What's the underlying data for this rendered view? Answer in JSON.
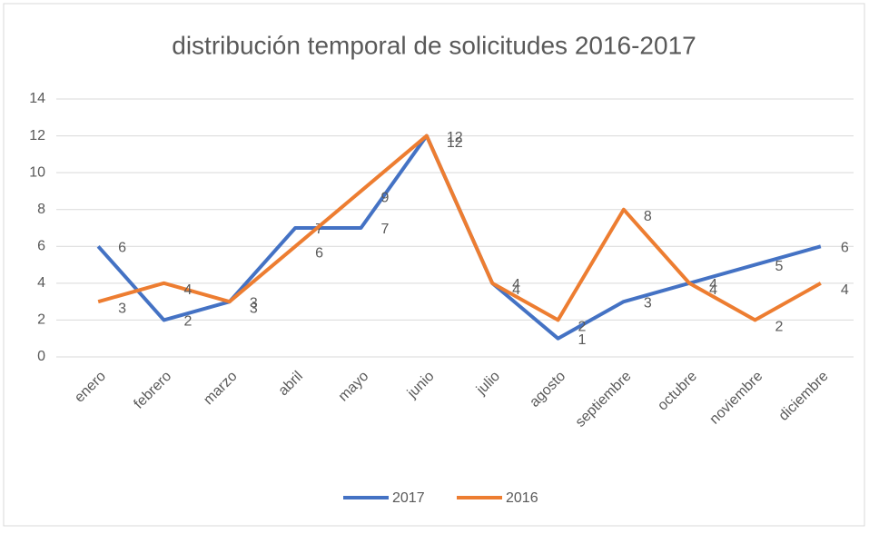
{
  "chart_data": {
    "type": "line",
    "title": "distribución temporal de solicitudes 2016-2017",
    "categories": [
      "enero",
      "febrero",
      "marzo",
      "abril",
      "mayo",
      "junio",
      "julio",
      "agosto",
      "septiembre",
      "octubre",
      "noviembre",
      "diciembre"
    ],
    "series": [
      {
        "name": "2017",
        "color": "#4472c4",
        "values": [
          6,
          2,
          3,
          7,
          7,
          12,
          4,
          1,
          3,
          4,
          5,
          6
        ]
      },
      {
        "name": "2016",
        "color": "#ed7d31",
        "values": [
          3,
          4,
          3,
          6,
          9,
          12,
          4,
          2,
          8,
          4,
          2,
          4
        ]
      }
    ],
    "ylim": [
      0,
      14
    ],
    "yticks": [
      0,
      2,
      4,
      6,
      8,
      10,
      12,
      14
    ],
    "grid": true,
    "legend": "bottom"
  }
}
